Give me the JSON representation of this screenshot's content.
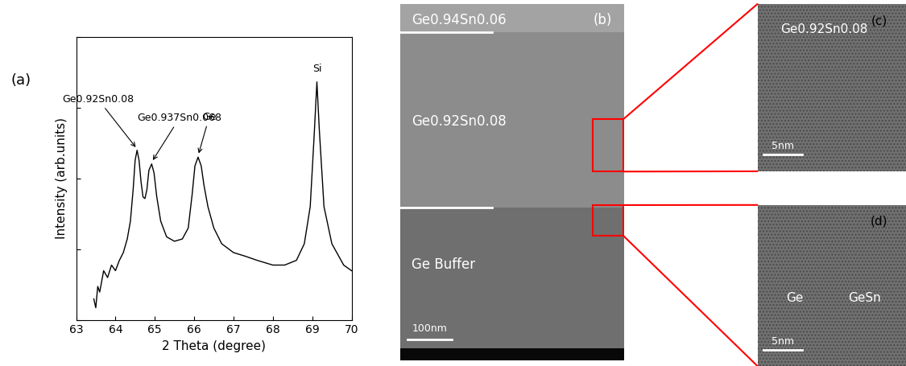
{
  "chart_data": {
    "type": "line",
    "title": "(a)",
    "x_label": "2 Theta (degree)",
    "y_label": "Intensity (arb.units)",
    "x": [
      63.45,
      63.5,
      63.55,
      63.6,
      63.7,
      63.8,
      63.9,
      64.0,
      64.1,
      64.2,
      64.3,
      64.38,
      64.45,
      64.5,
      64.55,
      64.6,
      64.65,
      64.7,
      64.75,
      64.8,
      64.85,
      64.92,
      64.98,
      65.05,
      65.15,
      65.3,
      65.5,
      65.7,
      65.85,
      65.95,
      66.02,
      66.1,
      66.18,
      66.25,
      66.35,
      66.5,
      66.7,
      67.0,
      67.3,
      67.6,
      68.0,
      68.3,
      68.6,
      68.8,
      68.95,
      69.05,
      69.12,
      69.18,
      69.3,
      69.5,
      69.8,
      70.0
    ],
    "values": [
      2,
      1.5,
      3,
      2.5,
      5,
      4,
      6,
      5,
      7,
      9,
      14,
      25,
      70,
      180,
      250,
      180,
      90,
      55,
      52,
      70,
      130,
      160,
      120,
      55,
      25,
      15,
      13,
      14,
      20,
      60,
      150,
      200,
      150,
      80,
      40,
      20,
      12,
      9,
      8,
      7,
      6,
      6,
      7,
      12,
      40,
      400,
      2300,
      500,
      40,
      12,
      6,
      5
    ],
    "color": "#000000",
    "xlim": [
      63,
      70
    ],
    "xticks": [
      63,
      64,
      65,
      66,
      67,
      68,
      69,
      70
    ],
    "ylim": [
      1,
      10000
    ],
    "yticks": [
      1,
      10,
      100,
      1000,
      10000
    ],
    "log": "y",
    "tick_labels": "x",
    "annotations": [
      {
        "text": "Ge0.92Sn0.08",
        "x": 64.55,
        "y": 260
      },
      {
        "text": "Ge0.937Sn0.068",
        "x": 64.92,
        "y": 170
      },
      {
        "text": "Ge",
        "x": 66.1,
        "y": 210
      },
      {
        "text": "Si",
        "x": 69.12,
        "y": 2400
      }
    ]
  },
  "images": [
    {
      "label": "(b)",
      "layers": [
        "Ge0.94Sn0.06",
        "Ge0.92Sn0.08",
        "Ge Buffer"
      ],
      "scale_bar": "100nm"
    },
    {
      "label": "(c)",
      "texts": [
        "Ge0.92Sn0.08"
      ],
      "scale_bar": "5nm"
    },
    {
      "label": "(d)",
      "texts": [
        "Ge",
        "GeSn"
      ],
      "scale_bar": "5nm"
    }
  ]
}
